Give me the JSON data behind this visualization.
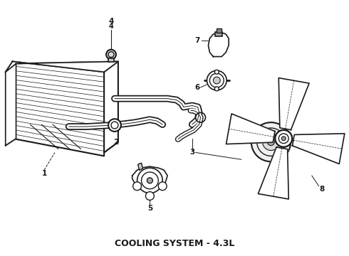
{
  "title": "COOLING SYSTEM - 4.3L",
  "title_fontsize": 9,
  "title_fontweight": "bold",
  "bg_color": "#ffffff",
  "line_color": "#1a1a1a",
  "fig_width": 4.9,
  "fig_height": 3.6,
  "dpi": 100
}
